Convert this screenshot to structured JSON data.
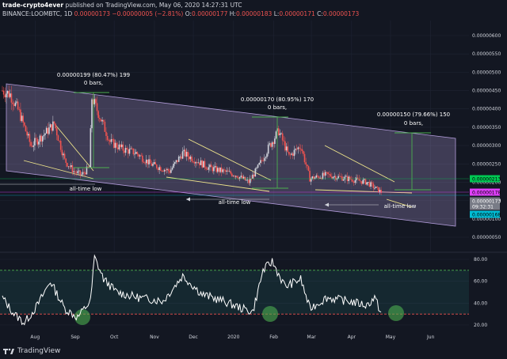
{
  "header": {
    "publisher": "trade-crypto4ever",
    "published_text": "published on TradingView.com, May 06, 2020 14:27:31 UTC",
    "symbol": "BINANCE:LOOMBTC, 1D",
    "last": "0.00000173",
    "change": "−0.00000005 (−2.81%)",
    "o_label": "O:",
    "o": "0.00000177",
    "h_label": "H:",
    "h": "0.00000183",
    "l_label": "L:",
    "l": "0.00000171",
    "c_label": "C:",
    "c": "0.00000173"
  },
  "footer": {
    "brand": "TradingView"
  },
  "annotations": [
    {
      "line1": "0.00000199 (80.47%) 199",
      "line2": "0 bars,"
    },
    {
      "line1": "0.00000170 (80.95%) 170",
      "line2": "0 bars,"
    },
    {
      "line1": "0.00000150 (79.66%) 150",
      "line2": "0 bars,"
    },
    {
      "label": "all-time low"
    },
    {
      "label": "all-time low"
    },
    {
      "label": "all-time low"
    }
  ],
  "price_badges": [
    {
      "text": "0.00000213",
      "color": "#00c853",
      "text_color": "#000000"
    },
    {
      "text": "0.00000178",
      "color": "#e040fb",
      "text_color": "#000000"
    },
    {
      "text": "0.00000173",
      "color": "#787b86",
      "text_color": "#ffffff"
    },
    {
      "text": "09:32:31",
      "color": "#787b86",
      "text_color": "#ffffff"
    },
    {
      "text": "0.00000168",
      "color": "#00bcd4",
      "text_color": "#000000"
    }
  ],
  "colors": {
    "background": "#131722",
    "channel": "#b39ddb",
    "up": "#d1d4dc",
    "down": "#ef5350",
    "wedge": "#f0e68c",
    "measure": "#4caf50",
    "rsi": "#ffffff"
  },
  "chart_data": [
    {
      "type": "candlestick",
      "title": "",
      "ylim": [
        4e-07,
        6.1e-06
      ],
      "y_ticks": [
        "0.00000600",
        "0.00000550",
        "0.00000500",
        "0.00000450",
        "0.00000400",
        "0.00000350",
        "0.00000300",
        "0.00000250",
        "0.00000200",
        "0.00000150",
        "0.00000100",
        "0.00000050"
      ],
      "x_ticks": [
        "Aug",
        "Sep",
        "Oct",
        "Nov",
        "Dec",
        "2020",
        "Feb",
        "Mar",
        "Apr",
        "May",
        "Jun"
      ],
      "approx_close_path": [
        [
          "2019-07-19",
          4.5e-06
        ],
        [
          "2019-07-25",
          4.4e-06
        ],
        [
          "2019-08-01",
          3.9e-06
        ],
        [
          "2019-08-10",
          3e-06
        ],
        [
          "2019-08-20",
          3.3e-06
        ],
        [
          "2019-08-28",
          3.6e-06
        ],
        [
          "2019-09-05",
          2.6e-06
        ],
        [
          "2019-09-12",
          2.3e-06
        ],
        [
          "2019-09-18",
          2.2e-06
        ],
        [
          "2019-09-24",
          2.4e-06
        ],
        [
          "2019-09-26",
          4.3e-06
        ],
        [
          "2019-10-02",
          3.8e-06
        ],
        [
          "2019-10-10",
          3.1e-06
        ],
        [
          "2019-10-20",
          2.9e-06
        ],
        [
          "2019-10-30",
          2.8e-06
        ],
        [
          "2019-11-10",
          2.5e-06
        ],
        [
          "2019-11-25",
          2.3e-06
        ],
        [
          "2019-12-05",
          2.8e-06
        ],
        [
          "2019-12-15",
          2.6e-06
        ],
        [
          "2019-12-25",
          2.4e-06
        ],
        [
          "2020-01-05",
          2.3e-06
        ],
        [
          "2020-01-15",
          2.2e-06
        ],
        [
          "2020-01-25",
          2e-06
        ],
        [
          "2020-02-01",
          2.4e-06
        ],
        [
          "2020-02-10",
          3e-06
        ],
        [
          "2020-02-17",
          3.4e-06
        ],
        [
          "2020-02-25",
          2.7e-06
        ],
        [
          "2020-03-05",
          3e-06
        ],
        [
          "2020-03-12",
          2.1e-06
        ],
        [
          "2020-03-25",
          2.2e-06
        ],
        [
          "2020-04-10",
          2.1e-06
        ],
        [
          "2020-04-25",
          2e-06
        ],
        [
          "2020-05-06",
          1.73e-06
        ]
      ]
    },
    {
      "type": "line",
      "name": "",
      "ylim": [
        10,
        85
      ],
      "y_ticks": [
        "80.00",
        "60.00",
        "40.00",
        "20.00"
      ],
      "bands": [
        30,
        70
      ],
      "approx_values": [
        [
          "2019-07-19",
          45
        ],
        [
          "2019-07-28",
          30
        ],
        [
          "2019-08-05",
          22
        ],
        [
          "2019-08-15",
          38
        ],
        [
          "2019-08-25",
          60
        ],
        [
          "2019-09-05",
          35
        ],
        [
          "2019-09-15",
          27
        ],
        [
          "2019-09-25",
          42
        ],
        [
          "2019-09-28",
          82
        ],
        [
          "2019-10-05",
          62
        ],
        [
          "2019-10-15",
          50
        ],
        [
          "2019-11-01",
          45
        ],
        [
          "2019-11-20",
          42
        ],
        [
          "2019-12-05",
          65
        ],
        [
          "2019-12-20",
          48
        ],
        [
          "2020-01-05",
          42
        ],
        [
          "2020-01-20",
          35
        ],
        [
          "2020-01-28",
          32
        ],
        [
          "2020-02-05",
          70
        ],
        [
          "2020-02-12",
          78
        ],
        [
          "2020-02-22",
          55
        ],
        [
          "2020-03-05",
          62
        ],
        [
          "2020-03-12",
          35
        ],
        [
          "2020-03-25",
          45
        ],
        [
          "2020-04-10",
          42
        ],
        [
          "2020-04-25",
          38
        ],
        [
          "2020-05-01",
          45
        ],
        [
          "2020-05-06",
          31
        ]
      ]
    }
  ]
}
